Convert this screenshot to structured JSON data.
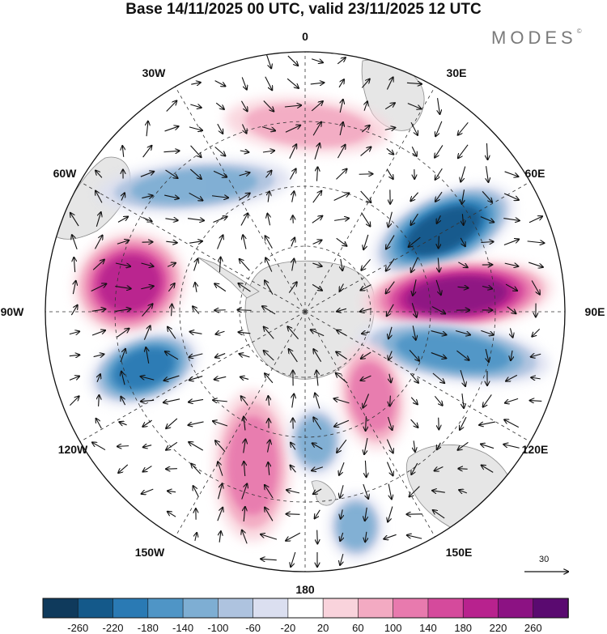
{
  "header": {
    "title": "Base 14/11/2025 00 UTC, valid 23/11/2025 12 UTC",
    "brand": "MODES",
    "brand_mark": "©"
  },
  "map": {
    "projection": "south-polar-stereographic",
    "longitude_labels": [
      "0",
      "30E",
      "60E",
      "90E",
      "120E",
      "150E",
      "180",
      "150W",
      "120W",
      "90W",
      "60W",
      "30W"
    ],
    "wind_reference": "30",
    "variable": "geopotential height anomaly with wind vectors"
  },
  "colorbar": {
    "tick_labels": [
      "-260",
      "-220",
      "-180",
      "-140",
      "-100",
      "-60",
      "-20",
      "20",
      "60",
      "100",
      "140",
      "180",
      "220",
      "260"
    ],
    "colors": [
      "#0f3a5c",
      "#14598a",
      "#2a7ab4",
      "#4f95c6",
      "#7eaed3",
      "#aec3df",
      "#dbdff0",
      "#ffffff",
      "#f9d3dc",
      "#f3aac2",
      "#e87aae",
      "#d54a9c",
      "#b8228e",
      "#8c1283",
      "#5a0a70"
    ],
    "anomalies": [
      {
        "region": "southern Atlantic/Indian 30E-60E",
        "value": -230
      },
      {
        "region": "Indian Ocean near 90E",
        "value": 250
      },
      {
        "region": "southern Indian Ocean 90E-110E",
        "value": -160
      },
      {
        "region": "southeast Pacific near 90W",
        "value": 190
      },
      {
        "region": "southeast Pacific 110W",
        "value": -210
      },
      {
        "region": "Pacific 150W",
        "value": 120
      },
      {
        "region": "Ross Sea area 170W",
        "value": -120
      },
      {
        "region": "south of Australia 130E",
        "value": 110
      },
      {
        "region": "Tasman Sea 160E",
        "value": -130
      },
      {
        "region": "South America west",
        "value": -110
      },
      {
        "region": "South Atlantic 20W",
        "value": 60
      }
    ]
  }
}
